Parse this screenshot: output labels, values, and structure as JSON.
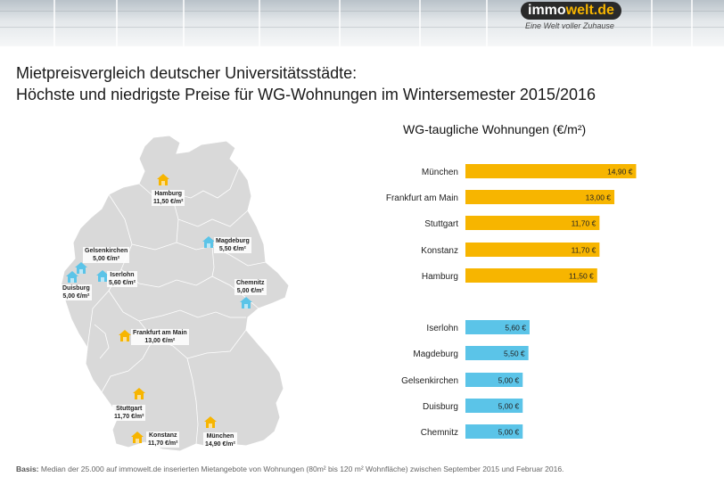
{
  "header": {
    "logo_prefix": "immo",
    "logo_suffix": "welt",
    "logo_tld": ".de",
    "logo_tagline": "Eine Welt voller Zuhause"
  },
  "title": {
    "line1": "Mietpreisvergleich deutscher Universitätsstädte:",
    "line2": "Höchste und niedrigste Preise für WG-Wohnungen im Wintersemester 2015/2016"
  },
  "map": {
    "cities": [
      {
        "name": "Hamburg",
        "price": "11,50 €/m²",
        "group": "high"
      },
      {
        "name": "Magdeburg",
        "price": "5,50 €/m²",
        "group": "low"
      },
      {
        "name": "Gelsenkirchen",
        "price": "5,00 €/m²",
        "group": "low"
      },
      {
        "name": "Iserlohn",
        "price": "5,60 €/m²",
        "group": "low"
      },
      {
        "name": "Duisburg",
        "price": "5,00 €/m²",
        "group": "low"
      },
      {
        "name": "Chemnitz",
        "price": "5,00 €/m²",
        "group": "low"
      },
      {
        "name": "Frankfurt am Main",
        "price": "13,00 €/m²",
        "group": "high"
      },
      {
        "name": "Stuttgart",
        "price": "11,70 €/m²",
        "group": "high"
      },
      {
        "name": "Konstanz",
        "price": "11,70 €/m²",
        "group": "high"
      },
      {
        "name": "München",
        "price": "14,90 €/m²",
        "group": "high"
      }
    ]
  },
  "chart_data": {
    "type": "bar",
    "orientation": "horizontal",
    "title": "WG-taugliche Wohnungen (€/m²)",
    "categories": [
      "München",
      "Frankfurt am Main",
      "Stuttgart",
      "Konstanz",
      "Hamburg",
      "Iserlohn",
      "Magdeburg",
      "Gelsenkirchen",
      "Duisburg",
      "Chemnitz"
    ],
    "values": [
      14.9,
      13.0,
      11.7,
      11.7,
      11.5,
      5.6,
      5.5,
      5.0,
      5.0,
      5.0
    ],
    "value_labels": [
      "14,90 €",
      "13,00 €",
      "11,70 €",
      "11,70 €",
      "11,50 €",
      "5,60 €",
      "5,50 €",
      "5,00 €",
      "5,00 €",
      "5,00 €"
    ],
    "groups": [
      "high",
      "high",
      "high",
      "high",
      "high",
      "low",
      "low",
      "low",
      "low",
      "low"
    ],
    "colors": {
      "high": "#F7B500",
      "low": "#5BC4E8"
    },
    "grid": false,
    "legend": "none"
  },
  "colors": {
    "high": "#F7B500",
    "low": "#5BC4E8",
    "map_fill": "#D9D9D9"
  },
  "footer": {
    "label": "Basis:",
    "text": " Median der 25.000 auf immowelt.de inserierten Mietangebote von Wohnungen (80m² bis 120 m² Wohnfläche) zwischen September 2015 und Februar 2016."
  }
}
